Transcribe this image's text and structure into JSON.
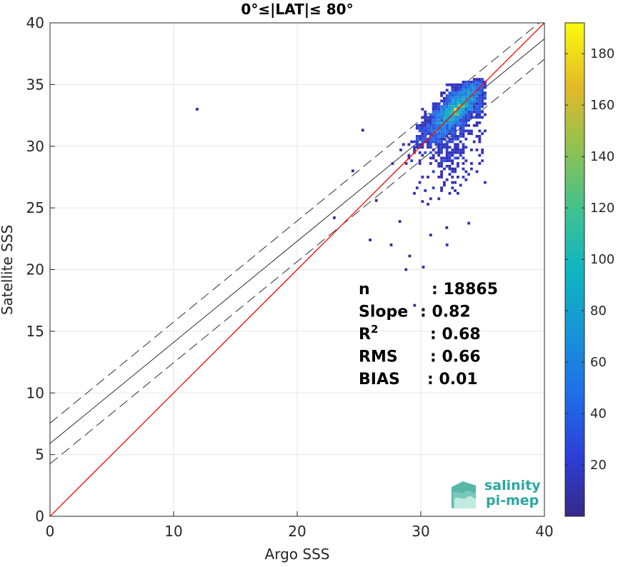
{
  "chart_data": {
    "type": "heatmap",
    "title": "0°≤|LAT|≤ 80°",
    "xlabel": "Argo SSS",
    "ylabel": "Satellite SSS",
    "xlim": [
      0,
      40
    ],
    "ylim": [
      0,
      40
    ],
    "xticks": [
      "0",
      "10",
      "20",
      "30",
      "40"
    ],
    "yticks": [
      "0",
      "5",
      "10",
      "15",
      "20",
      "25",
      "30",
      "35",
      "40"
    ],
    "grid": true,
    "colormap": "parula",
    "colorbar": {
      "range": [
        0,
        192
      ],
      "ticks": [
        "20",
        "40",
        "60",
        "80",
        "100",
        "120",
        "140",
        "160",
        "180"
      ]
    },
    "reference_line": {
      "label": "1:1",
      "color": "#ff0000"
    },
    "regression": {
      "slope": 0.82,
      "intercept": 5.9,
      "band": 1.65,
      "color": "#000000"
    },
    "cluster": {
      "center_x": 32.8,
      "center_y": 33.0,
      "peak_count": 190
    },
    "outliers": [
      {
        "x": 11.9,
        "y": 33.0
      },
      {
        "x": 23.0,
        "y": 24.2
      },
      {
        "x": 25.9,
        "y": 22.4
      },
      {
        "x": 28.8,
        "y": 20.0
      },
      {
        "x": 30.2,
        "y": 20.2
      },
      {
        "x": 32.1,
        "y": 23.4
      },
      {
        "x": 25.3,
        "y": 31.3
      },
      {
        "x": 27.6,
        "y": 22.0
      },
      {
        "x": 29.1,
        "y": 21.1
      },
      {
        "x": 30.8,
        "y": 22.8
      },
      {
        "x": 24.5,
        "y": 28.0
      },
      {
        "x": 26.4,
        "y": 25.6
      },
      {
        "x": 28.3,
        "y": 23.9
      },
      {
        "x": 29.5,
        "y": 17.1
      }
    ],
    "stats": [
      {
        "label": "n",
        "sep": ": 18865"
      },
      {
        "label": "Slope",
        "sep": ": 0.82"
      },
      {
        "label": "R",
        "sup": "2",
        "sep": ": 0.68"
      },
      {
        "label": "RMS",
        "sep": ": 0.66"
      },
      {
        "label": "BIAS",
        "sep": ": 0.01"
      }
    ]
  },
  "logo": {
    "line1": "salinity",
    "line2": "pi-mep"
  }
}
